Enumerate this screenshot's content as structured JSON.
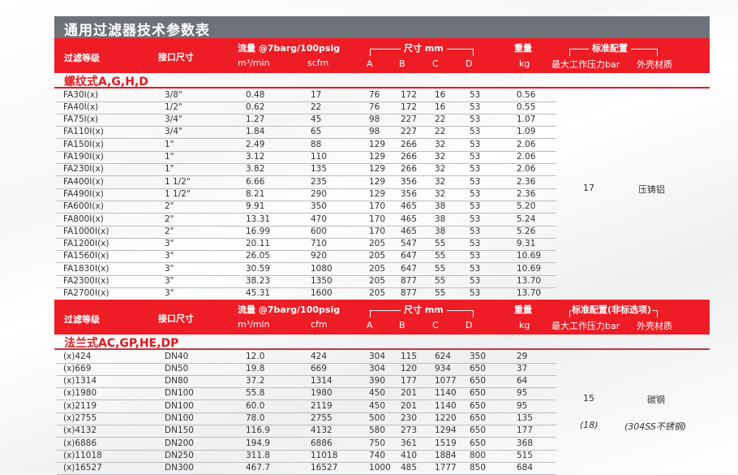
{
  "title": "通用过滤器技术参数表",
  "header1": {
    "grade": "过滤等级",
    "port": "接口尺寸",
    "flow": "流量 @7barg/100psig",
    "m3": "m³/min",
    "flow_unit2": "scfm",
    "dims": "尺寸 mm",
    "a": "A",
    "b": "B",
    "c": "C",
    "d": "D",
    "weight": "重量",
    "kg": "kg",
    "config": "标准配置",
    "pressure": "最大工作压力bar",
    "material": "外壳材质"
  },
  "section1": {
    "title": "螺纹式A,G,H,D",
    "pressure": "17",
    "material": "压铸铝",
    "rows": [
      [
        "FA30I(x)",
        "3/8\"",
        "0.48",
        "17",
        "76",
        "172",
        "16",
        "53",
        "0.56"
      ],
      [
        "FA40I(x)",
        "1/2\"",
        "0.62",
        "22",
        "76",
        "172",
        "16",
        "53",
        "0.55"
      ],
      [
        "FA75I(x)",
        "3/4\"",
        "1.27",
        "45",
        "98",
        "227",
        "22",
        "53",
        "1.07"
      ],
      [
        "FA110I(x)",
        "3/4\"",
        "1.84",
        "65",
        "98",
        "227",
        "22",
        "53",
        "1.09"
      ],
      [
        "FA150I(x)",
        "1\"",
        "2.49",
        "88",
        "129",
        "266",
        "32",
        "53",
        "2.06"
      ],
      [
        "FA190I(x)",
        "1\"",
        "3.12",
        "110",
        "129",
        "266",
        "32",
        "53",
        "2.06"
      ],
      [
        "FA230I(x)",
        "1\"",
        "3.82",
        "135",
        "129",
        "266",
        "32",
        "53",
        "2.06"
      ],
      [
        "FA400I(x)",
        "1 1/2\"",
        "6.66",
        "235",
        "129",
        "356",
        "32",
        "53",
        "2.36"
      ],
      [
        "FA490I(x)",
        "1 1/2\"",
        "8.21",
        "290",
        "129",
        "356",
        "32",
        "53",
        "2.36"
      ],
      [
        "FA600I(x)",
        "2\"",
        "9.91",
        "350",
        "170",
        "465",
        "38",
        "53",
        "5.20"
      ],
      [
        "FA800I(x)",
        "2\"",
        "13.31",
        "470",
        "170",
        "465",
        "38",
        "53",
        "5.24"
      ],
      [
        "FA1000I(x)",
        "2\"",
        "16.99",
        "600",
        "170",
        "465",
        "38",
        "53",
        "5.26"
      ],
      [
        "FA1200I(x)",
        "3\"",
        "20.11",
        "710",
        "205",
        "547",
        "55",
        "53",
        "9.31"
      ],
      [
        "FA1560I(x)",
        "3\"",
        "26.05",
        "920",
        "205",
        "647",
        "55",
        "53",
        "10.69"
      ],
      [
        "FA1830I(x)",
        "3\"",
        "30.59",
        "1080",
        "205",
        "647",
        "55",
        "53",
        "10.69"
      ],
      [
        "FA2300I(x)",
        "3\"",
        "38.23",
        "1350",
        "205",
        "877",
        "55",
        "53",
        "13.70"
      ],
      [
        "FA2700I(x)",
        "3\"",
        "45.31",
        "1600",
        "205",
        "877",
        "55",
        "53",
        "13.70"
      ]
    ]
  },
  "header2": {
    "grade": "过滤等级",
    "port": "接口尺寸",
    "flow": "流量 @7barg/100psig",
    "m3": "m³/min",
    "flow_unit2": "cfm",
    "dims": "尺寸 mm",
    "a": "A",
    "b": "B",
    "c": "C",
    "d": "D",
    "weight": "重量",
    "kg": "kg",
    "config": "标准配置(非标选项)",
    "pressure": "最大工作压力bar",
    "material": "外壳材质"
  },
  "section2": {
    "title": "法兰式AC,GP,HE,DP",
    "pressure": "15",
    "material": "碳钢",
    "pressure_option": "(18)",
    "material_option": "(304SS不锈钢)",
    "rows": [
      [
        "(x)424",
        "DN40",
        "12.0",
        "424",
        "304",
        "115",
        "624",
        "350",
        "29"
      ],
      [
        "(x)669",
        "DN50",
        "19.8",
        "669",
        "304",
        "120",
        "934",
        "650",
        "37"
      ],
      [
        "(x)1314",
        "DN80",
        "37.2",
        "1314",
        "390",
        "177",
        "1077",
        "650",
        "64"
      ],
      [
        "(x)1980",
        "DN100",
        "55.8",
        "1980",
        "450",
        "201",
        "1140",
        "650",
        "95"
      ],
      [
        "(x)2119",
        "DN100",
        "60.0",
        "2119",
        "450",
        "201",
        "1140",
        "650",
        "95"
      ],
      [
        "(x)2755",
        "DN100",
        "78.0",
        "2755",
        "500",
        "230",
        "1220",
        "650",
        "135"
      ],
      [
        "(x)4132",
        "DN150",
        "116.9",
        "4132",
        "580",
        "273",
        "1294",
        "650",
        "177"
      ],
      [
        "(x)6886",
        "DN200",
        "194.9",
        "6886",
        "750",
        "361",
        "1519",
        "650",
        "368"
      ],
      [
        "(x)11018",
        "DN250",
        "311.8",
        "11018",
        "740",
        "410",
        "1884",
        "800",
        "515"
      ],
      [
        "(x)16527",
        "DN300",
        "467.7",
        "16527",
        "1000",
        "485",
        "1777",
        "850",
        "684"
      ]
    ]
  },
  "colors": {
    "accent": "#ee1c25",
    "title_bar": "#6c7278"
  }
}
